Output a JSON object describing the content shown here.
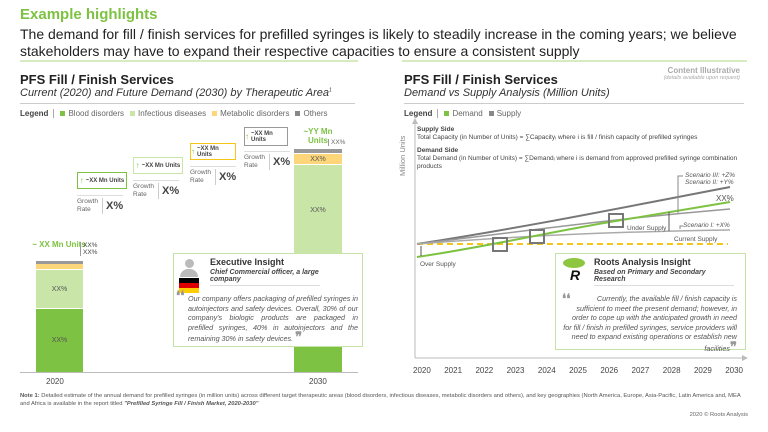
{
  "header": {
    "title": "Example highlights",
    "lead": "The demand for fill / finish services for prefilled syringes is likely to steadily increase in the coming years; we believe stakeholders may have to expand their respective capacities to ensure a consistent supply"
  },
  "left": {
    "title": "PFS Fill / Finish Services",
    "subtitle": "Current (2020) and Future Demand (2030) by Therapeutic Area",
    "subtitle_sup": "1",
    "legend_label": "Legend",
    "legend": [
      {
        "label": "Blood disorders",
        "color": "#7dc242"
      },
      {
        "label": "Infectious diseases",
        "color": "#c9e5a8"
      },
      {
        "label": "Metabolic disorders",
        "color": "#fcd679"
      },
      {
        "label": "Others",
        "color": "#888888"
      }
    ],
    "bar2020": {
      "label": "~ XX Mn Units",
      "year": "2020",
      "seg_blood": "XX%",
      "seg_infect": "XX%",
      "callout_metab": "XX%",
      "callout_others": "XX%"
    },
    "bar2030": {
      "label": "~YY Mn Units",
      "year": "2030",
      "seg_blood": "XX%",
      "seg_infect": "XX%",
      "seg_metab": "XX%",
      "callout_others": "XX%"
    },
    "steps": [
      {
        "units": "~XX Mn Units",
        "growth_label": "Growth Rate",
        "growth": "X%",
        "color": "#7dc242"
      },
      {
        "units": "~XX Mn Units",
        "growth_label": "Growth Rate",
        "growth": "X%",
        "color": "#c9e5a8"
      },
      {
        "units": "~XX Mn Units",
        "growth_label": "Growth Rate",
        "growth": "X%",
        "color": "#f5c518"
      },
      {
        "units": "~XX Mn Units",
        "growth_label": "Growth Rate",
        "growth": "X%",
        "color": "#999999"
      }
    ],
    "insight": {
      "title": "Executive Insight",
      "subtitle": "Chief Commercial officer, a large company",
      "quote": "Our company offers packaging of prefilled syringes in autoinjectors and safety devices. Overall, 30% of our company's biologic products are packaged in prefilled syringes, 40% in autoinjectors and the remaining 30% in safety devices."
    }
  },
  "right": {
    "illustrative": "Content Illustrative",
    "illustrative_note": "(details available upon request)",
    "title": "PFS Fill / Finish Services",
    "subtitle": "Demand vs Supply Analysis (Million Units)",
    "legend_label": "Legend",
    "legend": [
      {
        "label": "Demand",
        "color": "#7dc242"
      },
      {
        "label": "Supply",
        "color": "#888888"
      }
    ],
    "ylabel": "Million Units",
    "supply_head": "Supply Side",
    "supply_text": "Total Capacity (in Number of Units) = ∑Capacityᵢ  where i is fill / finish capacity of prefilled syringes",
    "demand_head": "Demand Side",
    "demand_text": "Total Demand (in Number of Units) = ∑Demandᵢ  where i is demand from approved prefilled syringe combination products",
    "years": [
      "2020",
      "2021",
      "2022",
      "2023",
      "2024",
      "2025",
      "2026",
      "2027",
      "2028",
      "2029",
      "2030"
    ],
    "labels": {
      "s3": "Scenario III: +Z%",
      "s2": "Scenario II: +Y%",
      "s1": "Scenario I: +X%",
      "demand_end": "XX%",
      "under": "Under Supply",
      "current": "Current Supply",
      "over": "Over Supply"
    },
    "insight": {
      "title": "Roots Analysis Insight",
      "subtitle": "Based on Primary and Secondary Research",
      "quote": "Currently, the available fill / finish capacity is sufficient to meet the present demand; however, in order to cope up with the anticipated growth in need for fill / finish in prefilled syringes, service providers will need to expand existing operations or establish new facilities"
    }
  },
  "footer": {
    "note_label": "Note 1:",
    "note": "Detailed estimate of the annual demand for prefilled syringes (in million units) across different target therapeutic areas (blood disorders, infectious diseases, metabolic disorders and others), and key geographies (North America, Europe, Asia-Pacific, Latin America and, MEA and Africa is available in the report titled ",
    "report": "\"Prefilled Syringe Fill / Finish Market, 2020-2030\"",
    "copyright": "2020 © Roots Analysis"
  }
}
